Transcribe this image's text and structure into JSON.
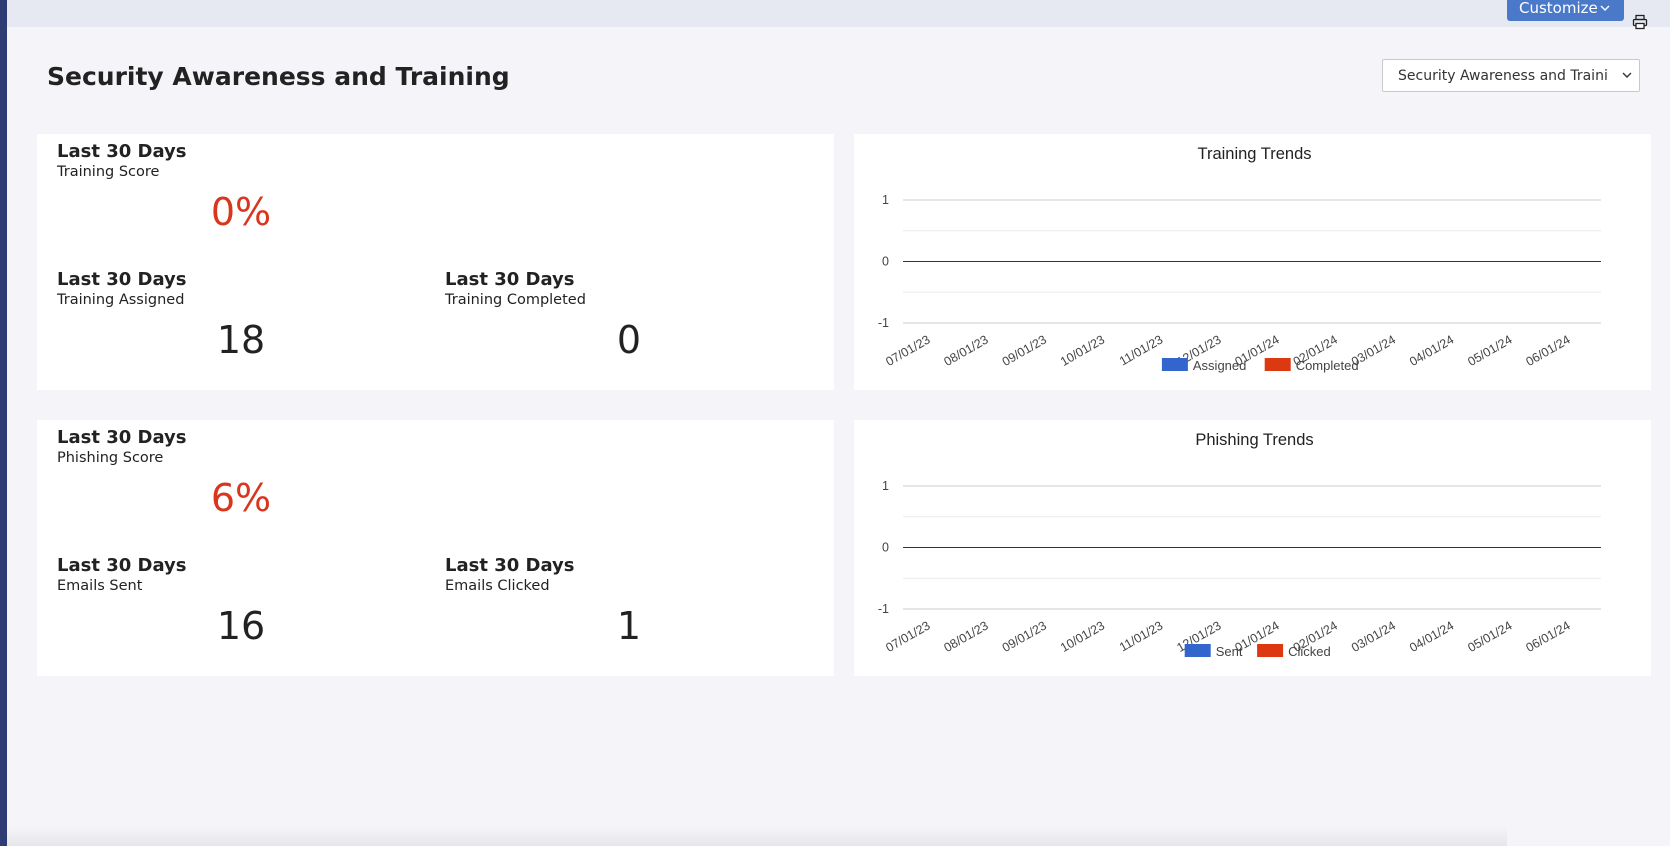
{
  "header": {
    "customize_label": "Customize"
  },
  "page": {
    "title": "Security Awareness and Training",
    "dashboard_select_value": "Security Awareness and Training"
  },
  "training": {
    "score": {
      "period": "Last 30 Days",
      "metric": "Training Score",
      "value": "0%"
    },
    "assigned": {
      "period": "Last 30 Days",
      "metric": "Training Assigned",
      "value": "18"
    },
    "completed": {
      "period": "Last 30 Days",
      "metric": "Training Completed",
      "value": "0"
    }
  },
  "phishing": {
    "score": {
      "period": "Last 30 Days",
      "metric": "Phishing Score",
      "value": "6%"
    },
    "sent": {
      "period": "Last 30 Days",
      "metric": "Emails Sent",
      "value": "16"
    },
    "clicked": {
      "period": "Last 30 Days",
      "metric": "Emails Clicked",
      "value": "1"
    }
  },
  "colors": {
    "accent": "#4a79c9",
    "score": "#d9361e",
    "series_blue": "#3366cc",
    "series_red": "#dc3912"
  },
  "chart_data": [
    {
      "type": "line",
      "title": "Training Trends",
      "x": [
        "07/01/23",
        "08/01/23",
        "09/01/23",
        "10/01/23",
        "11/01/23",
        "12/01/23",
        "01/01/24",
        "02/01/24",
        "03/01/24",
        "04/01/24",
        "05/01/24",
        "06/01/24"
      ],
      "y_ticks": [
        "1",
        "0",
        "-1"
      ],
      "ylim": [
        -1,
        1
      ],
      "grid": true,
      "legend_position": "bottom",
      "series": [
        {
          "name": "Assigned",
          "color": "#3366cc",
          "values": [
            0,
            0,
            0,
            0,
            0,
            0,
            0,
            0,
            0,
            0,
            0,
            0
          ]
        },
        {
          "name": "Completed",
          "color": "#dc3912",
          "values": [
            0,
            0,
            0,
            0,
            0,
            0,
            0,
            0,
            0,
            0,
            0,
            0
          ]
        }
      ]
    },
    {
      "type": "line",
      "title": "Phishing Trends",
      "x": [
        "07/01/23",
        "08/01/23",
        "09/01/23",
        "10/01/23",
        "11/01/23",
        "12/01/23",
        "01/01/24",
        "02/01/24",
        "03/01/24",
        "04/01/24",
        "05/01/24",
        "06/01/24"
      ],
      "y_ticks": [
        "1",
        "0",
        "-1"
      ],
      "ylim": [
        -1,
        1
      ],
      "grid": true,
      "legend_position": "bottom",
      "series": [
        {
          "name": "Sent",
          "color": "#3366cc",
          "values": [
            0,
            0,
            0,
            0,
            0,
            0,
            0,
            0,
            0,
            0,
            0,
            0
          ]
        },
        {
          "name": "Clicked",
          "color": "#dc3912",
          "values": [
            0,
            0,
            0,
            0,
            0,
            0,
            0,
            0,
            0,
            0,
            0,
            0
          ]
        }
      ]
    }
  ]
}
